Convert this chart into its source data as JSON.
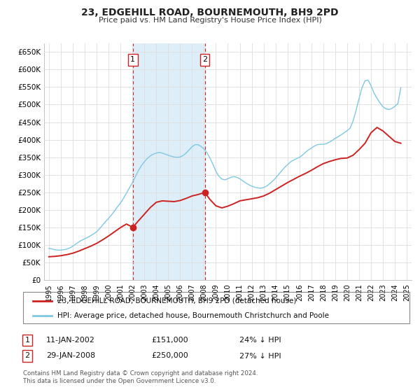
{
  "title": "23, EDGEHILL ROAD, BOURNEMOUTH, BH9 2PD",
  "subtitle": "Price paid vs. HM Land Registry's House Price Index (HPI)",
  "ylim": [
    0,
    675000
  ],
  "yticks": [
    0,
    50000,
    100000,
    150000,
    200000,
    250000,
    300000,
    350000,
    400000,
    450000,
    500000,
    550000,
    600000,
    650000
  ],
  "ytick_labels": [
    "£0",
    "£50K",
    "£100K",
    "£150K",
    "£200K",
    "£250K",
    "£300K",
    "£350K",
    "£400K",
    "£450K",
    "£500K",
    "£550K",
    "£600K",
    "£650K"
  ],
  "xlim_start": 1994.6,
  "xlim_end": 2025.4,
  "xticks": [
    1995,
    1996,
    1997,
    1998,
    1999,
    2000,
    2001,
    2002,
    2003,
    2004,
    2005,
    2006,
    2007,
    2008,
    2009,
    2010,
    2011,
    2012,
    2013,
    2014,
    2015,
    2016,
    2017,
    2018,
    2019,
    2020,
    2021,
    2022,
    2023,
    2024,
    2025
  ],
  "hpi_color": "#7ec8e3",
  "sale_color": "#cc2222",
  "marker_color": "#cc2222",
  "shaded_color": "#ddeef8",
  "annotation_box_color": "#cc2222",
  "sale1_x": 2002.04,
  "sale1_y": 151000,
  "sale1_label": "1",
  "sale1_date": "11-JAN-2002",
  "sale1_price": "£151,000",
  "sale1_note": "24% ↓ HPI",
  "sale2_x": 2008.07,
  "sale2_y": 250000,
  "sale2_label": "2",
  "sale2_date": "29-JAN-2008",
  "sale2_price": "£250,000",
  "sale2_note": "27% ↓ HPI",
  "legend_sale_label": "23, EDGEHILL ROAD, BOURNEMOUTH, BH9 2PD (detached house)",
  "legend_hpi_label": "HPI: Average price, detached house, Bournemouth Christchurch and Poole",
  "footnote1": "Contains HM Land Registry data © Crown copyright and database right 2024.",
  "footnote2": "This data is licensed under the Open Government Licence v3.0.",
  "hpi_data_x": [
    1995.0,
    1995.25,
    1995.5,
    1995.75,
    1996.0,
    1996.25,
    1996.5,
    1996.75,
    1997.0,
    1997.25,
    1997.5,
    1997.75,
    1998.0,
    1998.25,
    1998.5,
    1998.75,
    1999.0,
    1999.25,
    1999.5,
    1999.75,
    2000.0,
    2000.25,
    2000.5,
    2000.75,
    2001.0,
    2001.25,
    2001.5,
    2001.75,
    2002.0,
    2002.25,
    2002.5,
    2002.75,
    2003.0,
    2003.25,
    2003.5,
    2003.75,
    2004.0,
    2004.25,
    2004.5,
    2004.75,
    2005.0,
    2005.25,
    2005.5,
    2005.75,
    2006.0,
    2006.25,
    2006.5,
    2006.75,
    2007.0,
    2007.25,
    2007.5,
    2007.75,
    2008.0,
    2008.25,
    2008.5,
    2008.75,
    2009.0,
    2009.25,
    2009.5,
    2009.75,
    2010.0,
    2010.25,
    2010.5,
    2010.75,
    2011.0,
    2011.25,
    2011.5,
    2011.75,
    2012.0,
    2012.25,
    2012.5,
    2012.75,
    2013.0,
    2013.25,
    2013.5,
    2013.75,
    2014.0,
    2014.25,
    2014.5,
    2014.75,
    2015.0,
    2015.25,
    2015.5,
    2015.75,
    2016.0,
    2016.25,
    2016.5,
    2016.75,
    2017.0,
    2017.25,
    2017.5,
    2017.75,
    2018.0,
    2018.25,
    2018.5,
    2018.75,
    2019.0,
    2019.25,
    2019.5,
    2019.75,
    2020.0,
    2020.25,
    2020.5,
    2020.75,
    2021.0,
    2021.25,
    2021.5,
    2021.75,
    2022.0,
    2022.25,
    2022.5,
    2022.75,
    2023.0,
    2023.25,
    2023.5,
    2023.75,
    2024.0,
    2024.25,
    2024.5
  ],
  "hpi_data_y": [
    91000,
    89000,
    87000,
    86000,
    86000,
    87000,
    89000,
    92000,
    97000,
    103000,
    109000,
    114000,
    118000,
    122000,
    127000,
    132000,
    138000,
    147000,
    157000,
    167000,
    176000,
    186000,
    197000,
    209000,
    220000,
    233000,
    248000,
    263000,
    278000,
    295000,
    312000,
    326000,
    337000,
    347000,
    354000,
    359000,
    362000,
    364000,
    362000,
    359000,
    356000,
    353000,
    351000,
    350000,
    351000,
    355000,
    362000,
    371000,
    380000,
    386000,
    386000,
    381000,
    374000,
    363000,
    348000,
    330000,
    310000,
    296000,
    288000,
    286000,
    289000,
    293000,
    295000,
    293000,
    289000,
    283000,
    277000,
    272000,
    268000,
    265000,
    263000,
    262000,
    264000,
    268000,
    275000,
    282000,
    291000,
    301000,
    311000,
    321000,
    329000,
    337000,
    342000,
    346000,
    350000,
    356000,
    364000,
    371000,
    376000,
    382000,
    386000,
    387000,
    387000,
    389000,
    393000,
    398000,
    404000,
    409000,
    414000,
    420000,
    426000,
    433000,
    454000,
    484000,
    518000,
    549000,
    568000,
    570000,
    554000,
    533000,
    518000,
    505000,
    494000,
    488000,
    486000,
    489000,
    495000,
    503000,
    548000
  ],
  "sale_data_x": [
    1995.0,
    1995.5,
    1996.0,
    1996.5,
    1997.0,
    1997.5,
    1998.0,
    1998.5,
    1999.0,
    1999.5,
    2000.0,
    2000.5,
    2001.0,
    2001.5,
    2002.04,
    2002.5,
    2003.0,
    2003.5,
    2004.0,
    2004.5,
    2005.0,
    2005.5,
    2006.0,
    2006.5,
    2007.0,
    2007.5,
    2008.07,
    2008.5,
    2009.0,
    2009.5,
    2010.0,
    2010.5,
    2011.0,
    2011.5,
    2012.0,
    2012.5,
    2013.0,
    2013.5,
    2014.0,
    2014.5,
    2015.0,
    2015.5,
    2016.0,
    2016.5,
    2017.0,
    2017.5,
    2018.0,
    2018.5,
    2019.0,
    2019.5,
    2020.0,
    2020.5,
    2021.0,
    2021.5,
    2022.0,
    2022.5,
    2023.0,
    2023.5,
    2024.0,
    2024.5
  ],
  "sale_data_y": [
    67000,
    68000,
    70000,
    73000,
    77000,
    83000,
    90000,
    97000,
    105000,
    115000,
    126000,
    138000,
    150000,
    160000,
    151000,
    169000,
    188000,
    207000,
    222000,
    226000,
    225000,
    224000,
    227000,
    233000,
    240000,
    244000,
    250000,
    230000,
    212000,
    206000,
    211000,
    218000,
    226000,
    229000,
    232000,
    235000,
    240000,
    248000,
    258000,
    268000,
    278000,
    287000,
    296000,
    304000,
    313000,
    323000,
    332000,
    338000,
    343000,
    347000,
    348000,
    356000,
    372000,
    390000,
    420000,
    435000,
    425000,
    410000,
    395000,
    390000
  ]
}
